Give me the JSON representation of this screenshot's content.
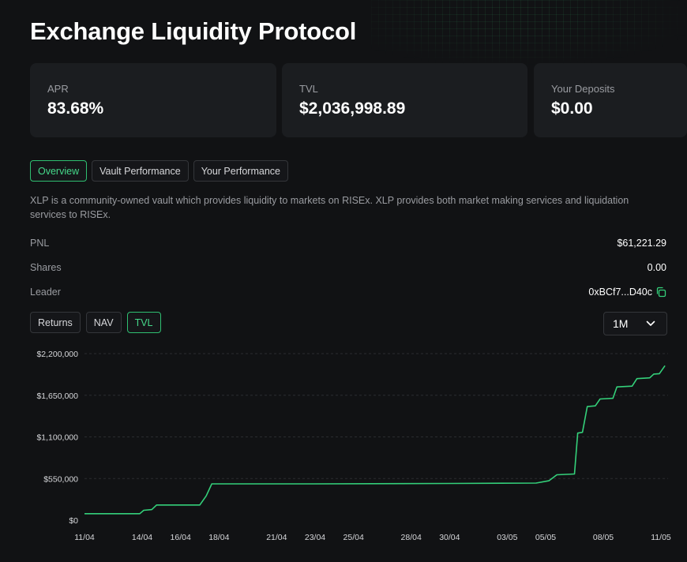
{
  "page": {
    "title": "Exchange Liquidity Protocol"
  },
  "stats": [
    {
      "label": "APR",
      "value": "83.68%"
    },
    {
      "label": "TVL",
      "value": "$2,036,998.89"
    },
    {
      "label": "Your Deposits",
      "value": "$0.00"
    }
  ],
  "tabs": [
    {
      "label": "Overview",
      "active": true
    },
    {
      "label": "Vault Performance",
      "active": false
    },
    {
      "label": "Your Performance",
      "active": false
    }
  ],
  "description": "XLP is a community-owned vault which provides liquidity to markets on RISEx. XLP provides both market making services and liquidation services to RISEx.",
  "details": {
    "pnl": {
      "label": "PNL",
      "value": "$61,221.29"
    },
    "shares": {
      "label": "Shares",
      "value": "0.00"
    },
    "leader": {
      "label": "Leader",
      "value": "0xBCf7...D40c",
      "icon": "copy-icon"
    }
  },
  "chart_tabs": [
    {
      "label": "Returns",
      "active": false
    },
    {
      "label": "NAV",
      "active": false
    },
    {
      "label": "TVL",
      "active": true
    }
  ],
  "range": {
    "value": "1M",
    "icon": "chevron-down-icon"
  },
  "colors": {
    "accent": "#2fbf71",
    "line": "#34d07a"
  },
  "chart_data": {
    "type": "line",
    "title": "",
    "ylabel": "",
    "xlabel": "",
    "ylim": [
      0,
      2200000
    ],
    "yticks": [
      {
        "value": 0,
        "label": "$0"
      },
      {
        "value": 550000,
        "label": "$550,000"
      },
      {
        "value": 1100000,
        "label": "$1,100,000"
      },
      {
        "value": 1650000,
        "label": "$1,650,000"
      },
      {
        "value": 2200000,
        "label": "$2,200,000"
      }
    ],
    "xlim": [
      "2025-04-11",
      "2025-05-11"
    ],
    "xticks": [
      {
        "date": "2025-04-11",
        "label": "11/04"
      },
      {
        "date": "2025-04-14",
        "label": "14/04"
      },
      {
        "date": "2025-04-16",
        "label": "16/04"
      },
      {
        "date": "2025-04-18",
        "label": "18/04"
      },
      {
        "date": "2025-04-21",
        "label": "21/04"
      },
      {
        "date": "2025-04-23",
        "label": "23/04"
      },
      {
        "date": "2025-04-25",
        "label": "25/04"
      },
      {
        "date": "2025-04-28",
        "label": "28/04"
      },
      {
        "date": "2025-04-30",
        "label": "30/04"
      },
      {
        "date": "2025-05-03",
        "label": "03/05"
      },
      {
        "date": "2025-05-05",
        "label": "05/05"
      },
      {
        "date": "2025-05-08",
        "label": "08/05"
      },
      {
        "date": "2025-05-11",
        "label": "11/05"
      }
    ],
    "grid": true,
    "series": [
      {
        "points": [
          [
            "2025-04-11 00:00",
            85000
          ],
          [
            "2025-04-13 21:00",
            85000
          ],
          [
            "2025-04-14 02:00",
            130000
          ],
          [
            "2025-04-14 12:00",
            140000
          ],
          [
            "2025-04-14 18:00",
            200000
          ],
          [
            "2025-04-17 00:00",
            200000
          ],
          [
            "2025-04-17 08:00",
            320000
          ],
          [
            "2025-04-17 15:00",
            480000
          ],
          [
            "2025-04-23 00:00",
            480000
          ],
          [
            "2025-04-30 00:00",
            485000
          ],
          [
            "2025-05-04 12:00",
            490000
          ],
          [
            "2025-05-05 04:00",
            520000
          ],
          [
            "2025-05-05 14:00",
            600000
          ],
          [
            "2025-05-06 12:00",
            610000
          ],
          [
            "2025-05-06 16:00",
            1150000
          ],
          [
            "2025-05-06 22:00",
            1160000
          ],
          [
            "2025-05-07 04:00",
            1500000
          ],
          [
            "2025-05-07 14:00",
            1510000
          ],
          [
            "2025-05-07 20:00",
            1600000
          ],
          [
            "2025-05-08 12:00",
            1610000
          ],
          [
            "2025-05-08 17:00",
            1760000
          ],
          [
            "2025-05-09 12:00",
            1770000
          ],
          [
            "2025-05-09 18:00",
            1870000
          ],
          [
            "2025-05-10 10:00",
            1880000
          ],
          [
            "2025-05-10 15:00",
            1930000
          ],
          [
            "2025-05-10 22:00",
            1935000
          ],
          [
            "2025-05-11 05:00",
            2040000
          ]
        ]
      }
    ]
  }
}
